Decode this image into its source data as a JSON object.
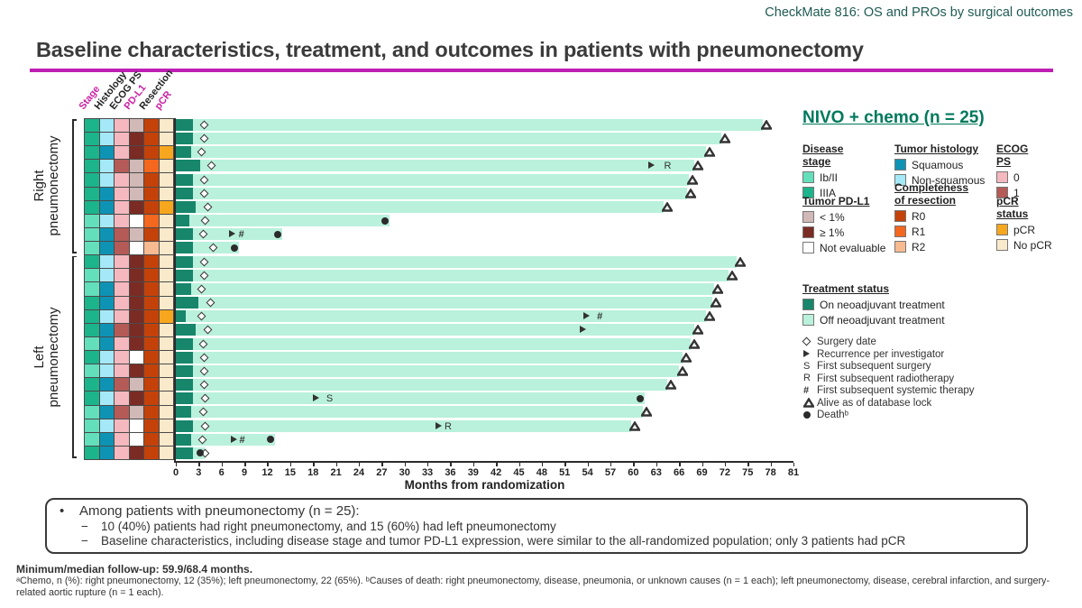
{
  "header": {
    "kicker": "CheckMate 816: OS and PROs by surgical outcomes",
    "title": "Baseline characteristics, treatment, and outcomes in patients with pneumonectomy"
  },
  "chart_data": {
    "type": "swimmer",
    "heading": "NIVO + chemo (n = 25)",
    "x_axis": {
      "label": "Months from randomization",
      "min": 0,
      "max": 81,
      "step": 3
    },
    "column_headers": [
      {
        "label": "Stage",
        "color": "#CC1FA3"
      },
      {
        "label": "Histology",
        "color": "#222222"
      },
      {
        "label": "ECOG PS",
        "color": "#222222"
      },
      {
        "label": "PD-L1",
        "color": "#CC1FA3"
      },
      {
        "label": "Resection",
        "color": "#222222"
      },
      {
        "label": "pCR",
        "color": "#CC1FA3"
      }
    ],
    "color_map": {
      "stage": {
        "Ib/II": "#63DFBC",
        "IIIA": "#1CB48B"
      },
      "histology": {
        "Squamous": "#0E93B5",
        "Non-squamous": "#A5E9F8"
      },
      "ecog": {
        "0": "#F4B8BE",
        "1": "#B55B57"
      },
      "pdl1": {
        "< 1%": "#D0B9B7",
        "≥ 1%": "#7A2B24",
        "Not evaluable": "#FFFFFF"
      },
      "resection": {
        "R0": "#C44209",
        "R1": "#F4671F",
        "R2": "#F8BA90"
      },
      "pcr": {
        "pCR": "#F7A71E",
        "No pCR": "#FAEACC"
      },
      "treatment": {
        "on": "#17866B",
        "off": "#B9F1DC"
      }
    },
    "groups": [
      {
        "label": "Right pneumonectomy",
        "from": 0,
        "to": 9
      },
      {
        "label": "Left pneumonectomy",
        "from": 10,
        "to": 24
      }
    ],
    "patients": [
      {
        "stage": "IIIA",
        "histology": "Non-squamous",
        "ecog": "0",
        "pdl1": "< 1%",
        "resection": "R0",
        "pcr": "No pCR",
        "on_end": 2.3,
        "surgery": 2.8,
        "bar_end": 77.0,
        "status": "alive",
        "events": []
      },
      {
        "stage": "IIIA",
        "histology": "Non-squamous",
        "ecog": "0",
        "pdl1": "≥ 1%",
        "resection": "R0",
        "pcr": "No pCR",
        "on_end": 2.3,
        "surgery": 2.8,
        "bar_end": 71.5,
        "status": "alive",
        "events": []
      },
      {
        "stage": "IIIA",
        "histology": "Squamous",
        "ecog": "0",
        "pdl1": "≥ 1%",
        "resection": "R0",
        "pcr": "pCR",
        "on_end": 2.0,
        "surgery": 2.5,
        "bar_end": 69.5,
        "status": "alive",
        "events": []
      },
      {
        "stage": "IIIA",
        "histology": "Non-squamous",
        "ecog": "1",
        "pdl1": "< 1%",
        "resection": "R1",
        "pcr": "No pCR",
        "on_end": 3.2,
        "surgery": 3.8,
        "bar_end": 68.0,
        "status": "alive",
        "events": [
          {
            "t": "rec",
            "x": 62.0
          },
          {
            "t": "R",
            "x": 63.8
          }
        ]
      },
      {
        "stage": "IIIA",
        "histology": "Non-squamous",
        "ecog": "0",
        "pdl1": "< 1%",
        "resection": "R0",
        "pcr": "No pCR",
        "on_end": 2.3,
        "surgery": 2.8,
        "bar_end": 67.3,
        "status": "alive",
        "events": []
      },
      {
        "stage": "IIIA",
        "histology": "Squamous",
        "ecog": "0",
        "pdl1": "< 1%",
        "resection": "R0",
        "pcr": "No pCR",
        "on_end": 2.3,
        "surgery": 2.8,
        "bar_end": 67.0,
        "status": "alive",
        "events": []
      },
      {
        "stage": "IIIA",
        "histology": "Squamous",
        "ecog": "0",
        "pdl1": "≥ 1%",
        "resection": "R0",
        "pcr": "pCR",
        "on_end": 2.6,
        "surgery": 3.3,
        "bar_end": 64.0,
        "status": "alive",
        "events": []
      },
      {
        "stage": "Ib/II",
        "histology": "Non-squamous",
        "ecog": "0",
        "pdl1": "Not evaluable",
        "resection": "R1",
        "pcr": "No pCR",
        "on_end": 1.8,
        "surgery": 3.0,
        "bar_end": 28.0,
        "status": "death",
        "events": []
      },
      {
        "stage": "Ib/II",
        "histology": "Squamous",
        "ecog": "1",
        "pdl1": "< 1%",
        "resection": "R0",
        "pcr": "No pCR",
        "on_end": 2.3,
        "surgery": 2.7,
        "bar_end": 14.0,
        "status": "death",
        "events": [
          {
            "t": "rec",
            "x": 7.0
          },
          {
            "t": "sys",
            "x": 8.0
          }
        ]
      },
      {
        "stage": "Ib/II",
        "histology": "Squamous",
        "ecog": "1",
        "pdl1": "Not evaluable",
        "resection": "R2",
        "pcr": "No pCR",
        "on_end": 2.2,
        "surgery": 4.0,
        "bar_end": 8.3,
        "status": "death",
        "events": []
      },
      {
        "stage": "IIIA",
        "histology": "Non-squamous",
        "ecog": "0",
        "pdl1": "≥ 1%",
        "resection": "R0",
        "pcr": "No pCR",
        "on_end": 2.3,
        "surgery": 2.8,
        "bar_end": 73.5,
        "status": "alive",
        "events": []
      },
      {
        "stage": "Ib/II",
        "histology": "Non-squamous",
        "ecog": "0",
        "pdl1": "≥ 1%",
        "resection": "R0",
        "pcr": "No pCR",
        "on_end": 2.3,
        "surgery": 2.8,
        "bar_end": 72.5,
        "status": "alive",
        "events": []
      },
      {
        "stage": "Ib/II",
        "histology": "Squamous",
        "ecog": "0",
        "pdl1": "≥ 1%",
        "resection": "R0",
        "pcr": "No pCR",
        "on_end": 2.0,
        "surgery": 2.5,
        "bar_end": 70.6,
        "status": "alive",
        "events": []
      },
      {
        "stage": "IIIA",
        "histology": "Squamous",
        "ecog": "0",
        "pdl1": "≥ 1%",
        "resection": "R0",
        "pcr": "No pCR",
        "on_end": 3.0,
        "surgery": 3.7,
        "bar_end": 70.4,
        "status": "alive",
        "events": []
      },
      {
        "stage": "IIIA",
        "histology": "Non-squamous",
        "ecog": "0",
        "pdl1": "≥ 1%",
        "resection": "R0",
        "pcr": "pCR",
        "on_end": 1.3,
        "surgery": 2.5,
        "bar_end": 69.5,
        "status": "alive",
        "events": [
          {
            "t": "rec",
            "x": 53.5
          },
          {
            "t": "sys",
            "x": 55.0
          }
        ]
      },
      {
        "stage": "IIIA",
        "histology": "Squamous",
        "ecog": "1",
        "pdl1": "≥ 1%",
        "resection": "R0",
        "pcr": "No pCR",
        "on_end": 2.6,
        "surgery": 3.3,
        "bar_end": 68.0,
        "status": "alive",
        "events": [
          {
            "t": "rec",
            "x": 53.0
          }
        ]
      },
      {
        "stage": "Ib/II",
        "histology": "Squamous",
        "ecog": "0",
        "pdl1": "≥ 1%",
        "resection": "R0",
        "pcr": "No pCR",
        "on_end": 2.3,
        "surgery": 2.7,
        "bar_end": 67.5,
        "status": "alive",
        "events": []
      },
      {
        "stage": "IIIA",
        "histology": "Non-squamous",
        "ecog": "0",
        "pdl1": "Not evaluable",
        "resection": "R0",
        "pcr": "No pCR",
        "on_end": 2.3,
        "surgery": 2.8,
        "bar_end": 66.5,
        "status": "alive",
        "events": []
      },
      {
        "stage": "Ib/II",
        "histology": "Non-squamous",
        "ecog": "0",
        "pdl1": "≥ 1%",
        "resection": "R0",
        "pcr": "No pCR",
        "on_end": 2.3,
        "surgery": 2.8,
        "bar_end": 66.0,
        "status": "alive",
        "events": []
      },
      {
        "stage": "IIIA",
        "histology": "Squamous",
        "ecog": "1",
        "pdl1": "< 1%",
        "resection": "R0",
        "pcr": "No pCR",
        "on_end": 2.3,
        "surgery": 2.8,
        "bar_end": 64.5,
        "status": "alive",
        "events": []
      },
      {
        "stage": "IIIA",
        "histology": "Non-squamous",
        "ecog": "0",
        "pdl1": "≥ 1%",
        "resection": "R0",
        "pcr": "No pCR",
        "on_end": 2.3,
        "surgery": 3.0,
        "bar_end": 61.5,
        "status": "death",
        "events": [
          {
            "t": "rec",
            "x": 18.0
          },
          {
            "t": "S",
            "x": 19.5
          }
        ]
      },
      {
        "stage": "Ib/II",
        "histology": "Squamous",
        "ecog": "1",
        "pdl1": "< 1%",
        "resection": "R0",
        "pcr": "No pCR",
        "on_end": 2.0,
        "surgery": 2.7,
        "bar_end": 61.3,
        "status": "alive",
        "events": []
      },
      {
        "stage": "Ib/II",
        "histology": "Non-squamous",
        "ecog": "0",
        "pdl1": "Not evaluable",
        "resection": "R0",
        "pcr": "No pCR",
        "on_end": 2.3,
        "surgery": 3.0,
        "bar_end": 59.7,
        "status": "alive",
        "events": [
          {
            "t": "rec",
            "x": 34.0
          },
          {
            "t": "R",
            "x": 35.0
          }
        ]
      },
      {
        "stage": "Ib/II",
        "histology": "Squamous",
        "ecog": "0",
        "pdl1": "Not evaluable",
        "resection": "R0",
        "pcr": "No pCR",
        "on_end": 2.0,
        "surgery": 2.6,
        "bar_end": 13.0,
        "status": "death",
        "events": [
          {
            "t": "rec",
            "x": 7.2
          },
          {
            "t": "sys",
            "x": 8.1
          }
        ]
      },
      {
        "stage": "IIIA",
        "histology": "Squamous",
        "ecog": "0",
        "pdl1": "≥ 1%",
        "resection": "R0",
        "pcr": "No pCR",
        "on_end": 2.2,
        "surgery": 3.0,
        "bar_end": 3.8,
        "status": "death",
        "events": []
      }
    ]
  },
  "legend": {
    "sections": [
      {
        "title": "Disease stage",
        "key": "stage",
        "items": [
          "Ib/II",
          "IIIA"
        ]
      },
      {
        "title": "Tumor histology",
        "key": "histology",
        "items": [
          "Squamous",
          "Non-squamous"
        ]
      },
      {
        "title": "ECOG PS",
        "key": "ecog",
        "items": [
          "0",
          "1"
        ]
      },
      {
        "title": "Tumor PD-L1",
        "key": "pdl1",
        "items": [
          "< 1%",
          "≥ 1%",
          "Not evaluable"
        ]
      },
      {
        "title": "Completeness \nof resection",
        "key": "resection",
        "items": [
          "R0",
          "R1",
          "R2"
        ]
      },
      {
        "title": "pCR status",
        "key": "pcr",
        "items": [
          "pCR",
          "No pCR"
        ]
      }
    ],
    "treatment": {
      "title": "Treatment status",
      "items": [
        {
          "key": "on",
          "label": "On neoadjuvant treatment"
        },
        {
          "key": "off",
          "label": "Off neoadjuvant treatment"
        }
      ]
    },
    "markers": [
      {
        "icon": "surgery",
        "label": "Surgery date"
      },
      {
        "icon": "rec",
        "label": "Recurrence per investigator"
      },
      {
        "icon": "S",
        "label": "First subsequent surgery"
      },
      {
        "icon": "R",
        "label": "First subsequent radiotherapy"
      },
      {
        "icon": "sys",
        "label": "First subsequent systemic therapy"
      },
      {
        "icon": "alive",
        "label": "Alive as of database lock"
      },
      {
        "icon": "death",
        "label": "Deathᵇ"
      }
    ]
  },
  "summary_box": {
    "main": "Among patients with pneumonectomy (n = 25):",
    "sub": [
      "10 (40%) patients had right pneumonectomy, and 15 (60%) had left pneumonectomy",
      "Baseline characteristics, including disease stage and tumor PD-L1 expression, were similar to the all-randomized population; only 3 patients had pCR"
    ]
  },
  "footnotes": {
    "followup": "Minimum/median follow-up: 59.9/68.4 months.",
    "note": "ᵃChemo, n (%): right pneumonectomy, 12 (35%); left pneumonectomy, 22 (65%). ᵇCauses of death: right pneumonectomy, disease, pneumonia, or unknown causes (n = 1 each); left pneumonectomy, disease, cerebral infarction, and surgery-related aortic rupture (n = 1 each)."
  }
}
